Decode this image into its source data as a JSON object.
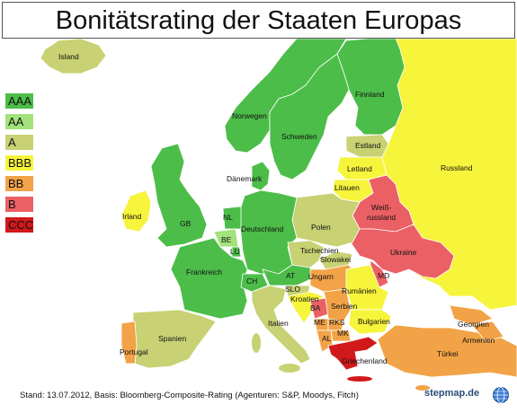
{
  "title": "Bonitätsrating der Staaten Europas",
  "legend": [
    {
      "label": "AAA",
      "color": "#4cbd49"
    },
    {
      "label": "AA",
      "color": "#a4e27c"
    },
    {
      "label": "A",
      "color": "#c8d173"
    },
    {
      "label": "BBB",
      "color": "#f7f43c"
    },
    {
      "label": "BB",
      "color": "#f2a347"
    },
    {
      "label": "B",
      "color": "#ea6064"
    },
    {
      "label": "CCC",
      "color": "#d1191c"
    }
  ],
  "countries": {
    "island": "Island",
    "norwegen": "Norwegen",
    "schweden": "Schweden",
    "finnland": "Finnland",
    "estland": "Estland",
    "lettland": "Letland",
    "litauen": "Litauen",
    "daenemark": "Dänemark",
    "irland": "Irland",
    "gb": "GB",
    "nl": "NL",
    "be": "BE",
    "lu": "LU",
    "deutschland": "Deutschland",
    "polen": "Polen",
    "weissrussland_1": "Weiß-",
    "weissrussland_2": "russland",
    "russland": "Russland",
    "ukraine": "Ukraine",
    "frankreich": "Frankreich",
    "tschechien": "Tschechien",
    "slowakei": "Slowakei",
    "at": "AT",
    "ch": "CH",
    "slo": "SLO",
    "ungarn": "Ungarn",
    "kroatien": "Kroatien",
    "ba": "BA",
    "serbien": "Serbien",
    "rumaenien": "Rumänien",
    "md": "MD",
    "italien": "Italien",
    "me": "ME",
    "rks": "RKS",
    "mk": "MK",
    "al": "AL",
    "bulgarien": "Bulgarien",
    "spanien": "Spanien",
    "portugal": "Portugal",
    "griechenland": "Griechenland",
    "tuerkei": "Türkei",
    "georgien": "Georgien",
    "armenien": "Armenien"
  },
  "footer": "Stand: 13.07.2012, Basis: Bloomberg-Composite-Rating (Agenturen: S&P, Moodys, Fitch)",
  "brand": "stepmap.de"
}
